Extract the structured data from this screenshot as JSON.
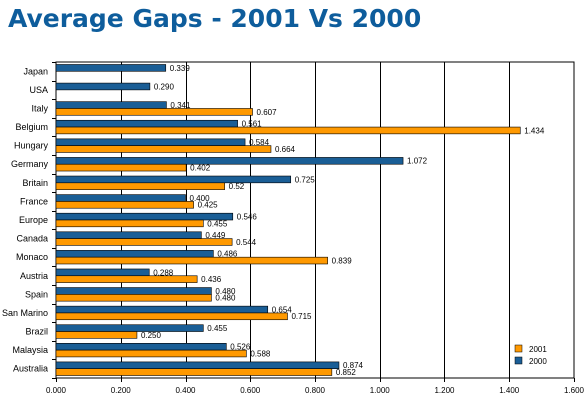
{
  "page": {
    "title": "Average Gaps - 2001 Vs 2000"
  },
  "chart_data": {
    "type": "bar",
    "orientation": "horizontal",
    "title": "Average Gaps - 2001 Vs 2000",
    "categories": [
      "Japan",
      "USA",
      "Italy",
      "Belgium",
      "Hungary",
      "Germany",
      "Britain",
      "France",
      "Europe",
      "Canada",
      "Monaco",
      "Austria",
      "Spain",
      "San Marino",
      "Brazil",
      "Malaysia",
      "Australia"
    ],
    "series": [
      {
        "name": "2000",
        "color": "#1a5e96",
        "values": [
          0.339,
          0.29,
          0.341,
          0.561,
          0.584,
          1.072,
          0.725,
          0.4,
          0.546,
          0.449,
          0.486,
          0.288,
          0.48,
          0.654,
          0.455,
          0.526,
          0.874
        ]
      },
      {
        "name": "2001",
        "color": "#ff9900",
        "values": [
          null,
          null,
          0.607,
          1.434,
          0.664,
          0.402,
          0.521,
          0.425,
          0.455,
          0.544,
          0.839,
          0.436,
          0.48,
          0.715,
          0.25,
          0.588,
          0.852
        ]
      }
    ],
    "value_labels": {
      "2000": [
        "0.339",
        "0.290",
        "0.341",
        "0.561",
        "0.584",
        "1.072",
        "0.725",
        "0.400",
        "0.546",
        "0.449",
        "0.486",
        "0.288",
        "0.480",
        "0.654",
        "0.455",
        "0.526",
        "0.874"
      ],
      "2001": [
        null,
        null,
        "0.607",
        "1.434",
        "0.664",
        "0.402",
        "0.52",
        "0.425",
        "0.455",
        "0.544",
        "0.839",
        "0.436",
        "0.480",
        "0.715",
        "0.250",
        "0.588",
        "0.852"
      ]
    },
    "xlim": [
      0,
      1.6
    ],
    "x_ticks": [
      0,
      0.2,
      0.4,
      0.6,
      0.8,
      1.0,
      1.2,
      1.4,
      1.6
    ],
    "x_tick_labels": [
      "0.000",
      "0.200",
      "0.400",
      "0.600",
      "0.800",
      "1.000",
      "1.200",
      "1.400",
      "1.600"
    ],
    "xlabel": "",
    "ylabel": "",
    "grid": "vertical",
    "legend": {
      "position": "bottom-right",
      "order": [
        "2001",
        "2000"
      ]
    }
  }
}
